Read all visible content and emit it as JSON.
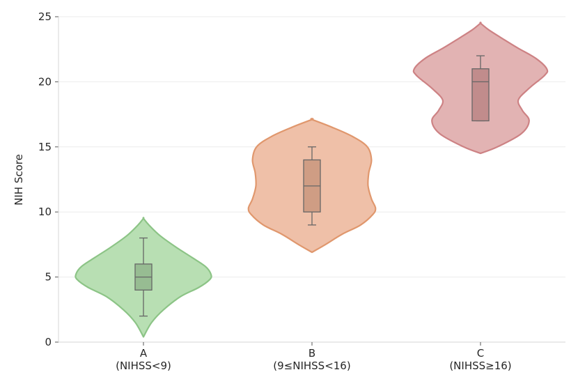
{
  "chart_data": {
    "type": "violin",
    "title": "",
    "xlabel": "",
    "ylabel": "NIH Score",
    "ylim": [
      0,
      25
    ],
    "yticks": [
      0,
      5,
      10,
      15,
      20,
      25
    ],
    "grid": "y-only",
    "categories": [
      {
        "name": "A",
        "sub": "(NIHSS<9)"
      },
      {
        "name": "B",
        "sub": "(9≤NIHSS<16)"
      },
      {
        "name": "C",
        "sub": "(NIHSS≥16)"
      }
    ],
    "series": [
      {
        "category": "A",
        "fill": "#b8dfb3",
        "edge": "#8cc486",
        "box_fill": "#97bc92",
        "box": {
          "whisker_low": 2,
          "q1": 4,
          "median": 5,
          "q3": 6,
          "whisker_high": 8
        },
        "violin_range": [
          0.4,
          9.5
        ],
        "density_profile": [
          [
            0.4,
            0
          ],
          [
            1.5,
            0.12
          ],
          [
            2.5,
            0.3
          ],
          [
            3.5,
            0.55
          ],
          [
            4.2,
            0.82
          ],
          [
            4.8,
            0.98
          ],
          [
            5.2,
            1.0
          ],
          [
            5.8,
            0.92
          ],
          [
            6.5,
            0.72
          ],
          [
            7.3,
            0.48
          ],
          [
            8.2,
            0.24
          ],
          [
            9.0,
            0.08
          ],
          [
            9.5,
            0
          ]
        ]
      },
      {
        "category": "B",
        "fill": "#efc0a8",
        "edge": "#e0976d",
        "box_fill": "#cf9d84",
        "box": {
          "whisker_low": 9,
          "q1": 10,
          "median": 12,
          "q3": 14,
          "whisker_high": 15
        },
        "violin_range": [
          6.9,
          17.1
        ],
        "density_profile": [
          [
            6.9,
            0
          ],
          [
            7.5,
            0.2
          ],
          [
            8.3,
            0.45
          ],
          [
            9.0,
            0.72
          ],
          [
            9.8,
            0.9
          ],
          [
            10.3,
            0.94
          ],
          [
            11.0,
            0.88
          ],
          [
            12.0,
            0.83
          ],
          [
            13.0,
            0.84
          ],
          [
            14.0,
            0.88
          ],
          [
            15.0,
            0.82
          ],
          [
            15.8,
            0.6
          ],
          [
            16.5,
            0.3
          ],
          [
            17.1,
            0
          ]
        ]
      },
      {
        "category": "C",
        "fill": "#e2b3b3",
        "edge": "#cd8284",
        "box_fill": "#c18c8c",
        "box": {
          "whisker_low": 17,
          "q1": 17,
          "median": 20,
          "q3": 21,
          "whisker_high": 22
        },
        "violin_range": [
          14.5,
          24.5
        ],
        "density_profile": [
          [
            14.5,
            0
          ],
          [
            15.0,
            0.25
          ],
          [
            16.0,
            0.6
          ],
          [
            17.0,
            0.72
          ],
          [
            17.8,
            0.62
          ],
          [
            18.6,
            0.56
          ],
          [
            19.5,
            0.72
          ],
          [
            20.5,
            0.95
          ],
          [
            21.0,
            0.98
          ],
          [
            21.8,
            0.82
          ],
          [
            22.6,
            0.55
          ],
          [
            23.4,
            0.3
          ],
          [
            24.0,
            0.12
          ],
          [
            24.5,
            0
          ]
        ]
      }
    ]
  }
}
